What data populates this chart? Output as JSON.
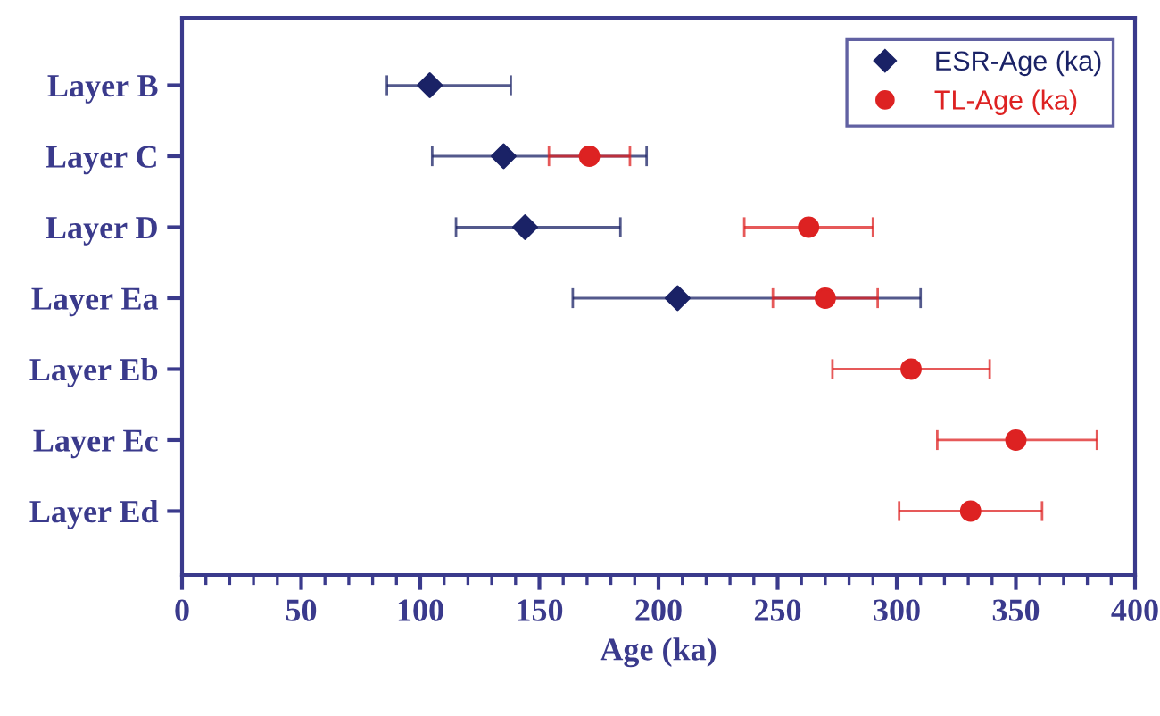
{
  "chart_data": {
    "type": "scatter",
    "orientation": "horizontal",
    "xlabel": "Age (ka)",
    "categories": [
      "Layer B",
      "Layer C",
      "Layer D",
      "Layer Ea",
      "Layer Eb",
      "Layer Ec",
      "Layer Ed"
    ],
    "xlim": [
      0,
      400
    ],
    "xticks": [
      0,
      50,
      100,
      150,
      200,
      250,
      300,
      350,
      400
    ],
    "legend": "top right",
    "grid": false,
    "series": [
      {
        "name": "ESR-Age (ka)",
        "color": "#1a2266",
        "marker": "diamond",
        "values": [
          104,
          135,
          144,
          208,
          null,
          null,
          null
        ],
        "errors": [
          [
            86,
            138
          ],
          [
            105,
            195
          ],
          [
            115,
            184
          ],
          [
            164,
            310
          ],
          null,
          null,
          null
        ]
      },
      {
        "name": "TL-Age (ka)",
        "color": "#dd2222",
        "marker": "circle",
        "values": [
          null,
          171,
          263,
          270,
          306,
          350,
          331
        ],
        "errors": [
          null,
          [
            154,
            188
          ],
          [
            236,
            290
          ],
          [
            248,
            292
          ],
          [
            273,
            339
          ],
          [
            317,
            384
          ],
          [
            301,
            361
          ]
        ]
      }
    ]
  }
}
